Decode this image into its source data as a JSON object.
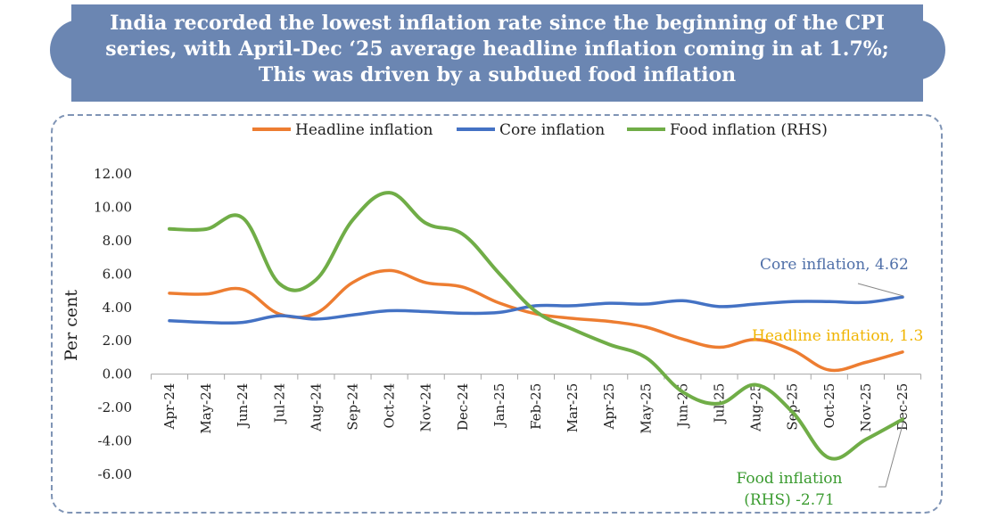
{
  "banner": {
    "line1": "India recorded the lowest inflation rate since the beginning of the CPI",
    "line2": "series, with April-Dec ‘25 average headline inflation coming in at 1.7%;",
    "line3": "This was driven by a subdued food inflation"
  },
  "colors": {
    "banner": "#6b86b2",
    "headline": "#ed7d31",
    "core": "#4472c4",
    "food": "#70ad47",
    "headline_label": "#f0b400",
    "food_label": "#3a9b2f",
    "core_label": "#4f6fa8"
  },
  "chart_data": {
    "type": "line",
    "ylabel": "Per cent",
    "ylim": [
      -6,
      12
    ],
    "yticks": [
      "12.00",
      "10.00",
      "8.00",
      "6.00",
      "4.00",
      "2.00",
      "0.00",
      "-2.00",
      "-4.00",
      "-6.00"
    ],
    "legend_position": "top",
    "grid": false,
    "categories": [
      "Apr-24",
      "May-24",
      "Jun-24",
      "Jul-24",
      "Aug-24",
      "Sep-24",
      "Oct-24",
      "Nov-24",
      "Dec-24",
      "Jan-25",
      "Feb-25",
      "Mar-25",
      "Apr-25",
      "May-25",
      "Jun-25",
      "Jul-25",
      "Aug-25",
      "Sep-25",
      "Oct-25",
      "Nov-25",
      "Dec-25"
    ],
    "series": [
      {
        "name": "Headline inflation",
        "values": [
          4.85,
          4.8,
          5.08,
          3.6,
          3.65,
          5.49,
          6.21,
          5.48,
          5.22,
          4.26,
          3.61,
          3.34,
          3.16,
          2.82,
          2.1,
          1.61,
          2.07,
          1.44,
          0.25,
          0.71,
          1.33
        ]
      },
      {
        "name": "Core inflation",
        "values": [
          3.2,
          3.1,
          3.1,
          3.5,
          3.3,
          3.55,
          3.8,
          3.75,
          3.65,
          3.7,
          4.1,
          4.1,
          4.25,
          4.2,
          4.4,
          4.05,
          4.2,
          4.35,
          4.35,
          4.3,
          4.62
        ]
      },
      {
        "name": "Food inflation (RHS)",
        "values": [
          8.7,
          8.69,
          9.36,
          5.42,
          5.66,
          9.24,
          10.87,
          9.04,
          8.39,
          6.02,
          3.75,
          2.69,
          1.78,
          0.99,
          -1.06,
          -1.76,
          -0.64,
          -2.28,
          -5.02,
          -3.91,
          -2.71
        ]
      }
    ],
    "annotations": {
      "core": "Core inflation, 4.62",
      "headline": "Headline inflation, 1.3",
      "food_line1": "Food inflation",
      "food_line2": "(RHS) -2.71"
    }
  }
}
